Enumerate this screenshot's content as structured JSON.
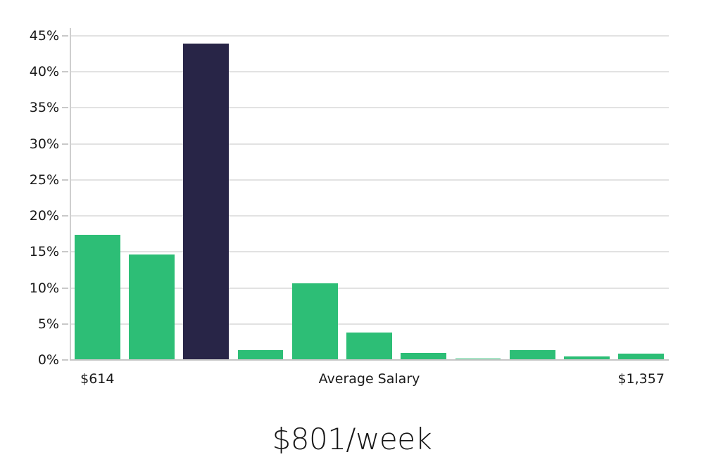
{
  "chart_data": {
    "type": "bar",
    "title": "$801/week",
    "xlabel": "",
    "ylabel": "",
    "grid": true,
    "legend": "none",
    "y_ticks": [
      "0%",
      "5%",
      "10%",
      "15%",
      "20%",
      "25%",
      "30%",
      "35%",
      "40%",
      "45%"
    ],
    "y_tick_step_pct": 5,
    "ylim": [
      0,
      46.2
    ],
    "values": [
      17.5,
      14.7,
      44.0,
      1.5,
      10.7,
      3.9,
      1.1,
      0.3,
      1.5,
      0.6,
      1.0
    ],
    "highlight_index": 2,
    "x_axis_labels": [
      {
        "text": "$614",
        "bar_index": 0
      },
      {
        "text": "Average Salary",
        "bar_index": 5
      },
      {
        "text": "$1,357",
        "bar_index": 10
      }
    ],
    "colors": {
      "bar": "#2dbe76",
      "highlight_bar": "#282547",
      "gridline": "#e2e2e2",
      "baseline": "#c6c6c6",
      "axis_line": "#cfcfcf",
      "tick": "#c9c9c9",
      "text": "#1a1a1a",
      "title_text": "#161616",
      "background": "#ffffff"
    }
  }
}
